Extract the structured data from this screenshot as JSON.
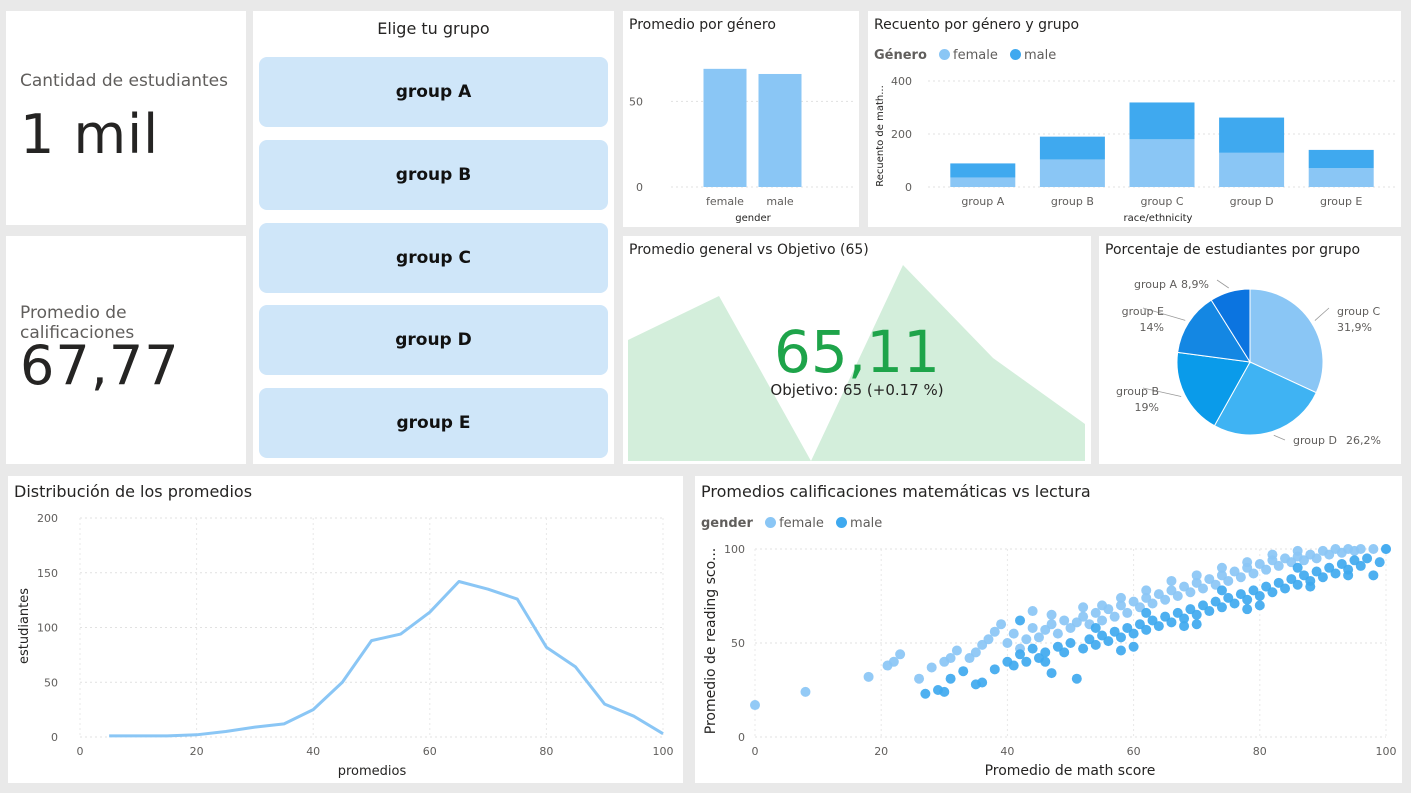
{
  "kpi_students": {
    "label": "Cantidad de estudiantes",
    "value": "1 mil"
  },
  "kpi_avg": {
    "label": "Promedio de calificaciones",
    "value": "67,77"
  },
  "slicer": {
    "title": "Elige tu grupo",
    "items": [
      "group A",
      "group B",
      "group C",
      "group D",
      "group E"
    ],
    "button_color": "#cfe6f9"
  },
  "colors": {
    "female": "#8ac6f5",
    "male": "#3fa9ef",
    "accent_green": "#1ea44a",
    "area_green": "#d3eedb",
    "pie": [
      "#8ac6f5",
      "#3fb3f3",
      "#0a9bea",
      "#1487e3",
      "#0b74e0"
    ]
  },
  "avg_by_gender": {
    "title": "Promedio por género",
    "chart_data": {
      "type": "bar",
      "categories": [
        "female",
        "male"
      ],
      "values": [
        69,
        66
      ],
      "xlabel": "gender",
      "ylabel": "",
      "yticks": [
        "0",
        "50"
      ],
      "ylim": [
        0,
        80
      ]
    }
  },
  "count_by_gender_group": {
    "title": "Recuento por género y grupo",
    "legend_title": "Género",
    "chart_data": {
      "type": "bar",
      "stacked": true,
      "categories": [
        "group A",
        "group B",
        "group C",
        "group D",
        "group E"
      ],
      "series": [
        {
          "name": "female",
          "values": [
            36,
            104,
            180,
            129,
            71
          ]
        },
        {
          "name": "male",
          "values": [
            53,
            86,
            139,
            133,
            69
          ]
        }
      ],
      "xlabel": "race/ethnicity",
      "ylabel": "Recuento de math...",
      "yticks": [
        "0",
        "200",
        "400"
      ],
      "ylim": [
        0,
        400
      ]
    }
  },
  "avg_vs_target": {
    "title": "Promedio general vs Objetivo (65)",
    "value": "65,11",
    "target_text": "Objetivo: 65 (+0.17 %)"
  },
  "pct_by_group": {
    "title": "Porcentaje de estudiantes por grupo",
    "chart_data": {
      "type": "pie",
      "categories": [
        "group C",
        "group D",
        "group B",
        "group E",
        "group A"
      ],
      "values": [
        31.9,
        26.2,
        19.0,
        14.0,
        8.9
      ],
      "labels": [
        {
          "name": "group C",
          "pct": "31,9%"
        },
        {
          "name": "group D",
          "pct": "26,2%"
        },
        {
          "name": "group B",
          "pct": "19%"
        },
        {
          "name": "group E",
          "pct": "14%"
        },
        {
          "name": "group A",
          "pct": "8,9%"
        }
      ]
    }
  },
  "distribution": {
    "title": "Distribución de los promedios",
    "chart_data": {
      "type": "line",
      "x": [
        5,
        10,
        15,
        20,
        25,
        30,
        35,
        40,
        45,
        50,
        55,
        60,
        65,
        70,
        75,
        80,
        85,
        90,
        95,
        100
      ],
      "values": [
        1,
        1,
        1,
        2,
        5,
        9,
        12,
        25,
        50,
        88,
        94,
        114,
        142,
        135,
        126,
        82,
        64,
        30,
        19,
        3
      ],
      "xlabel": "promedios",
      "ylabel": "estudiantes",
      "xticks": [
        "0",
        "20",
        "40",
        "60",
        "80",
        "100"
      ],
      "yticks": [
        "0",
        "50",
        "100",
        "150",
        "200"
      ],
      "xlim": [
        0,
        100
      ],
      "ylim": [
        0,
        200
      ]
    }
  },
  "scatter": {
    "title": "Promedios calificaciones matemáticas vs lectura",
    "legend_title": "gender",
    "chart_data": {
      "type": "scatter",
      "xlabel": "Promedio de math score",
      "ylabel": "Promedio de reading sco...",
      "xticks": [
        "0",
        "20",
        "40",
        "60",
        "80",
        "100"
      ],
      "yticks": [
        "0",
        "50",
        "100"
      ],
      "xlim": [
        0,
        100
      ],
      "ylim": [
        0,
        100
      ],
      "series": [
        {
          "name": "female",
          "points": [
            [
              0,
              17
            ],
            [
              8,
              24
            ],
            [
              18,
              32
            ],
            [
              21,
              38
            ],
            [
              22,
              40
            ],
            [
              23,
              44
            ],
            [
              26,
              31
            ],
            [
              28,
              37
            ],
            [
              30,
              40
            ],
            [
              31,
              42
            ],
            [
              32,
              46
            ],
            [
              34,
              42
            ],
            [
              35,
              45
            ],
            [
              36,
              49
            ],
            [
              37,
              52
            ],
            [
              38,
              56
            ],
            [
              40,
              50
            ],
            [
              41,
              55
            ],
            [
              42,
              47
            ],
            [
              43,
              52
            ],
            [
              44,
              58
            ],
            [
              45,
              53
            ],
            [
              46,
              57
            ],
            [
              47,
              60
            ],
            [
              48,
              55
            ],
            [
              49,
              62
            ],
            [
              50,
              58
            ],
            [
              51,
              61
            ],
            [
              52,
              64
            ],
            [
              53,
              60
            ],
            [
              54,
              66
            ],
            [
              55,
              62
            ],
            [
              56,
              68
            ],
            [
              57,
              64
            ],
            [
              58,
              70
            ],
            [
              59,
              66
            ],
            [
              60,
              72
            ],
            [
              61,
              69
            ],
            [
              62,
              74
            ],
            [
              63,
              71
            ],
            [
              64,
              76
            ],
            [
              65,
              73
            ],
            [
              66,
              78
            ],
            [
              67,
              75
            ],
            [
              68,
              80
            ],
            [
              69,
              77
            ],
            [
              70,
              82
            ],
            [
              71,
              79
            ],
            [
              72,
              84
            ],
            [
              73,
              81
            ],
            [
              74,
              86
            ],
            [
              75,
              83
            ],
            [
              76,
              88
            ],
            [
              77,
              85
            ],
            [
              78,
              90
            ],
            [
              79,
              87
            ],
            [
              80,
              92
            ],
            [
              81,
              89
            ],
            [
              82,
              94
            ],
            [
              83,
              91
            ],
            [
              84,
              95
            ],
            [
              85,
              93
            ],
            [
              86,
              96
            ],
            [
              87,
              94
            ],
            [
              88,
              97
            ],
            [
              89,
              95
            ],
            [
              90,
              99
            ],
            [
              91,
              97
            ],
            [
              92,
              100
            ],
            [
              93,
              98
            ],
            [
              94,
              100
            ],
            [
              95,
              99
            ],
            [
              96,
              100
            ],
            [
              98,
              100
            ],
            [
              100,
              100
            ],
            [
              44,
              67
            ],
            [
              39,
              60
            ],
            [
              47,
              65
            ],
            [
              55,
              70
            ],
            [
              62,
              78
            ],
            [
              70,
              86
            ],
            [
              78,
              93
            ],
            [
              86,
              99
            ],
            [
              52,
              69
            ],
            [
              58,
              74
            ],
            [
              66,
              83
            ],
            [
              74,
              90
            ],
            [
              82,
              97
            ]
          ]
        },
        {
          "name": "male",
          "points": [
            [
              27,
              23
            ],
            [
              29,
              25
            ],
            [
              30,
              24
            ],
            [
              31,
              31
            ],
            [
              33,
              35
            ],
            [
              35,
              28
            ],
            [
              36,
              29
            ],
            [
              38,
              36
            ],
            [
              40,
              40
            ],
            [
              41,
              38
            ],
            [
              42,
              44
            ],
            [
              43,
              40
            ],
            [
              44,
              47
            ],
            [
              45,
              42
            ],
            [
              46,
              45
            ],
            [
              47,
              34
            ],
            [
              48,
              48
            ],
            [
              49,
              45
            ],
            [
              50,
              50
            ],
            [
              51,
              31
            ],
            [
              52,
              47
            ],
            [
              53,
              52
            ],
            [
              54,
              49
            ],
            [
              55,
              54
            ],
            [
              56,
              51
            ],
            [
              57,
              56
            ],
            [
              58,
              53
            ],
            [
              59,
              58
            ],
            [
              60,
              55
            ],
            [
              61,
              60
            ],
            [
              62,
              57
            ],
            [
              63,
              62
            ],
            [
              64,
              59
            ],
            [
              65,
              64
            ],
            [
              66,
              61
            ],
            [
              67,
              66
            ],
            [
              68,
              63
            ],
            [
              69,
              68
            ],
            [
              70,
              65
            ],
            [
              71,
              70
            ],
            [
              72,
              67
            ],
            [
              73,
              72
            ],
            [
              74,
              69
            ],
            [
              75,
              74
            ],
            [
              76,
              71
            ],
            [
              77,
              76
            ],
            [
              78,
              73
            ],
            [
              79,
              78
            ],
            [
              80,
              75
            ],
            [
              81,
              80
            ],
            [
              82,
              77
            ],
            [
              83,
              82
            ],
            [
              84,
              79
            ],
            [
              85,
              84
            ],
            [
              86,
              81
            ],
            [
              87,
              86
            ],
            [
              88,
              83
            ],
            [
              89,
              88
            ],
            [
              90,
              85
            ],
            [
              91,
              90
            ],
            [
              92,
              87
            ],
            [
              93,
              92
            ],
            [
              94,
              89
            ],
            [
              95,
              94
            ],
            [
              96,
              91
            ],
            [
              97,
              95
            ],
            [
              98,
              86
            ],
            [
              99,
              93
            ],
            [
              100,
              100
            ],
            [
              42,
              62
            ],
            [
              46,
              40
            ],
            [
              54,
              58
            ],
            [
              58,
              46
            ],
            [
              62,
              66
            ],
            [
              68,
              59
            ],
            [
              74,
              78
            ],
            [
              80,
              70
            ],
            [
              86,
              90
            ],
            [
              60,
              48
            ],
            [
              70,
              60
            ],
            [
              78,
              68
            ],
            [
              88,
              80
            ],
            [
              94,
              86
            ]
          ]
        }
      ]
    }
  }
}
